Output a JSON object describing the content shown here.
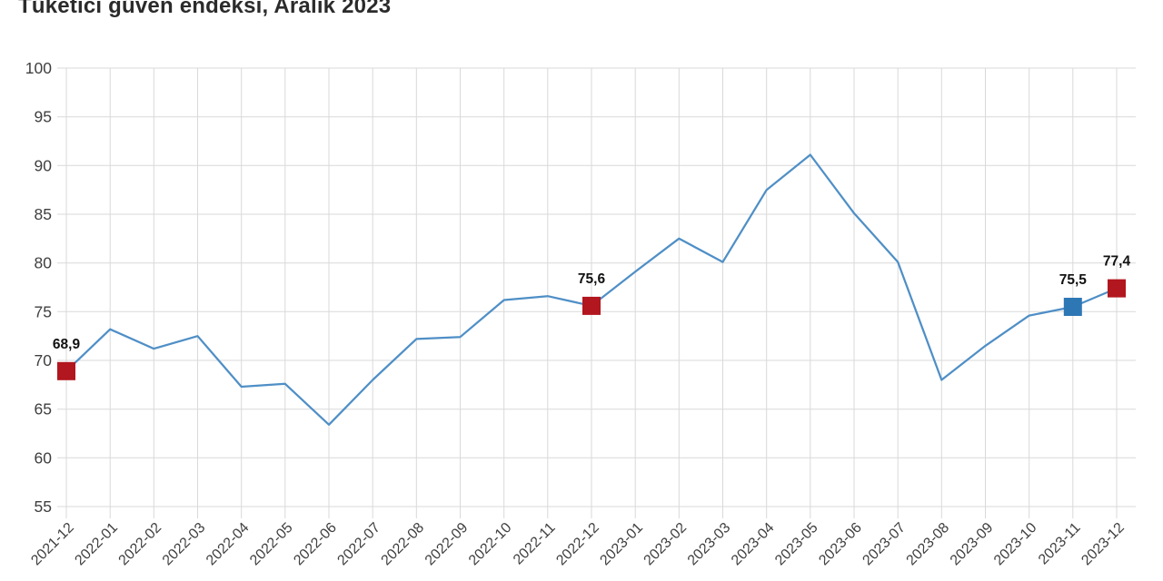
{
  "title": "Tüketici güven endeksi, Aralık 2023",
  "chart_data": {
    "type": "line",
    "title": "Tüketici güven endeksi, Aralık 2023",
    "x": [
      "2021-12",
      "2022-01",
      "2022-02",
      "2022-03",
      "2022-04",
      "2022-05",
      "2022-06",
      "2022-07",
      "2022-08",
      "2022-09",
      "2022-10",
      "2022-11",
      "2022-12",
      "2023-01",
      "2023-02",
      "2023-03",
      "2023-04",
      "2023-05",
      "2023-06",
      "2023-07",
      "2023-08",
      "2023-09",
      "2023-10",
      "2023-11",
      "2023-12"
    ],
    "series": [
      {
        "name": "Tüketici güven endeksi",
        "values": [
          68.9,
          73.2,
          71.2,
          72.5,
          67.3,
          67.6,
          63.4,
          68.0,
          72.2,
          72.4,
          76.2,
          76.6,
          75.6,
          79.1,
          82.5,
          80.1,
          87.5,
          91.1,
          85.1,
          80.1,
          68.0,
          71.5,
          74.6,
          75.5,
          77.4
        ]
      }
    ],
    "ylim": [
      55,
      100
    ],
    "ytick_step": 5,
    "yticks": [
      55,
      60,
      65,
      70,
      75,
      80,
      85,
      90,
      95,
      100
    ],
    "grid": true,
    "legend_position": "none",
    "xlabel": "",
    "ylabel": "",
    "highlighted_points": [
      {
        "x": "2021-12",
        "index": 0,
        "value": 68.9,
        "label": "68,9",
        "marker_color": "#b2161e",
        "marker": "square"
      },
      {
        "x": "2022-12",
        "index": 12,
        "value": 75.6,
        "label": "75,6",
        "marker_color": "#b2161e",
        "marker": "square"
      },
      {
        "x": "2023-11",
        "index": 23,
        "value": 75.5,
        "label": "75,5",
        "marker_color": "#2e77b5",
        "marker": "square"
      },
      {
        "x": "2023-12",
        "index": 24,
        "value": 77.4,
        "label": "77,4",
        "marker_color": "#b2161e",
        "marker": "square"
      }
    ],
    "colors": {
      "line": "#4f8fc6",
      "grid": "#d9d9d9",
      "axis_text": "#3f3f3f",
      "data_label": "#111111",
      "title_text": "#2b2b2b"
    }
  }
}
